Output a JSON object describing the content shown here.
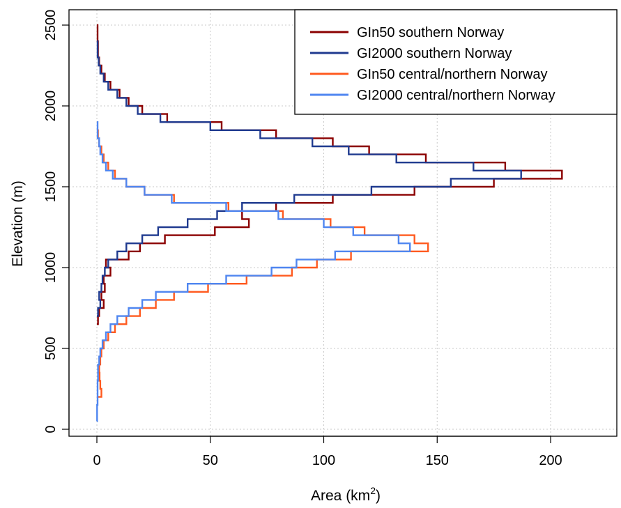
{
  "chart_data": {
    "type": "line",
    "xlabel": "Area (km",
    "xlabel_sup": "2",
    "xlabel_close": ")",
    "ylabel": "Elevation (m)",
    "xlim": [
      0,
      225
    ],
    "ylim": [
      0,
      2550
    ],
    "xticks": [
      0,
      50,
      100,
      150,
      200
    ],
    "yticks": [
      0,
      500,
      1000,
      1500,
      2000,
      2500
    ],
    "grid": true,
    "legend_position": "top-right",
    "series": [
      {
        "name": "GIn50 southern Norway",
        "color": "#8B0000",
        "steps": [
          {
            "y0": 650,
            "y1": 700,
            "x": 0.5
          },
          {
            "y0": 700,
            "y1": 750,
            "x": 1
          },
          {
            "y0": 750,
            "y1": 800,
            "x": 3
          },
          {
            "y0": 800,
            "y1": 850,
            "x": 2
          },
          {
            "y0": 850,
            "y1": 900,
            "x": 3.5
          },
          {
            "y0": 900,
            "y1": 950,
            "x": 3
          },
          {
            "y0": 950,
            "y1": 1000,
            "x": 6
          },
          {
            "y0": 1000,
            "y1": 1050,
            "x": 4
          },
          {
            "y0": 1050,
            "y1": 1100,
            "x": 14
          },
          {
            "y0": 1100,
            "y1": 1150,
            "x": 19
          },
          {
            "y0": 1150,
            "y1": 1200,
            "x": 30
          },
          {
            "y0": 1200,
            "y1": 1250,
            "x": 52
          },
          {
            "y0": 1250,
            "y1": 1300,
            "x": 67
          },
          {
            "y0": 1300,
            "y1": 1350,
            "x": 64
          },
          {
            "y0": 1350,
            "y1": 1400,
            "x": 79
          },
          {
            "y0": 1400,
            "y1": 1450,
            "x": 104
          },
          {
            "y0": 1450,
            "y1": 1500,
            "x": 140
          },
          {
            "y0": 1500,
            "y1": 1550,
            "x": 175
          },
          {
            "y0": 1550,
            "y1": 1600,
            "x": 205
          },
          {
            "y0": 1600,
            "y1": 1650,
            "x": 180
          },
          {
            "y0": 1650,
            "y1": 1700,
            "x": 145
          },
          {
            "y0": 1700,
            "y1": 1750,
            "x": 120
          },
          {
            "y0": 1750,
            "y1": 1800,
            "x": 104
          },
          {
            "y0": 1800,
            "y1": 1850,
            "x": 79
          },
          {
            "y0": 1850,
            "y1": 1900,
            "x": 55
          },
          {
            "y0": 1900,
            "y1": 1950,
            "x": 31
          },
          {
            "y0": 1950,
            "y1": 2000,
            "x": 20
          },
          {
            "y0": 2000,
            "y1": 2050,
            "x": 14
          },
          {
            "y0": 2050,
            "y1": 2100,
            "x": 10
          },
          {
            "y0": 2100,
            "y1": 2150,
            "x": 6
          },
          {
            "y0": 2150,
            "y1": 2200,
            "x": 3.5
          },
          {
            "y0": 2200,
            "y1": 2250,
            "x": 2
          },
          {
            "y0": 2250,
            "y1": 2300,
            "x": 1
          },
          {
            "y0": 2300,
            "y1": 2400,
            "x": 0.5
          },
          {
            "y0": 2400,
            "y1": 2500,
            "x": 0.3
          }
        ]
      },
      {
        "name": "GI2000 southern Norway",
        "color": "#1F3A8F",
        "steps": [
          {
            "y0": 700,
            "y1": 750,
            "x": 0.5
          },
          {
            "y0": 750,
            "y1": 800,
            "x": 1.5
          },
          {
            "y0": 800,
            "y1": 850,
            "x": 1
          },
          {
            "y0": 850,
            "y1": 900,
            "x": 2
          },
          {
            "y0": 900,
            "y1": 950,
            "x": 2.5
          },
          {
            "y0": 950,
            "y1": 1000,
            "x": 3.5
          },
          {
            "y0": 1000,
            "y1": 1050,
            "x": 5
          },
          {
            "y0": 1050,
            "y1": 1100,
            "x": 9
          },
          {
            "y0": 1100,
            "y1": 1150,
            "x": 13
          },
          {
            "y0": 1150,
            "y1": 1200,
            "x": 20
          },
          {
            "y0": 1200,
            "y1": 1250,
            "x": 27
          },
          {
            "y0": 1250,
            "y1": 1300,
            "x": 40
          },
          {
            "y0": 1300,
            "y1": 1350,
            "x": 53
          },
          {
            "y0": 1350,
            "y1": 1400,
            "x": 64
          },
          {
            "y0": 1400,
            "y1": 1450,
            "x": 87
          },
          {
            "y0": 1450,
            "y1": 1500,
            "x": 121
          },
          {
            "y0": 1500,
            "y1": 1550,
            "x": 156
          },
          {
            "y0": 1550,
            "y1": 1600,
            "x": 187
          },
          {
            "y0": 1600,
            "y1": 1650,
            "x": 166
          },
          {
            "y0": 1650,
            "y1": 1700,
            "x": 132
          },
          {
            "y0": 1700,
            "y1": 1750,
            "x": 111
          },
          {
            "y0": 1750,
            "y1": 1800,
            "x": 95
          },
          {
            "y0": 1800,
            "y1": 1850,
            "x": 72
          },
          {
            "y0": 1850,
            "y1": 1900,
            "x": 50
          },
          {
            "y0": 1900,
            "y1": 1950,
            "x": 28
          },
          {
            "y0": 1950,
            "y1": 2000,
            "x": 18
          },
          {
            "y0": 2000,
            "y1": 2050,
            "x": 13
          },
          {
            "y0": 2050,
            "y1": 2100,
            "x": 9
          },
          {
            "y0": 2100,
            "y1": 2150,
            "x": 5
          },
          {
            "y0": 2150,
            "y1": 2200,
            "x": 3
          },
          {
            "y0": 2200,
            "y1": 2250,
            "x": 1.5
          },
          {
            "y0": 2250,
            "y1": 2300,
            "x": 0.8
          },
          {
            "y0": 2300,
            "y1": 2400,
            "x": 0.3
          }
        ]
      },
      {
        "name": "GIn50 central/northern Norway",
        "color": "#FF5A1F",
        "steps": [
          {
            "y0": 200,
            "y1": 250,
            "x": 2
          },
          {
            "y0": 250,
            "y1": 300,
            "x": 1.5
          },
          {
            "y0": 300,
            "y1": 350,
            "x": 1.2
          },
          {
            "y0": 350,
            "y1": 400,
            "x": 1
          },
          {
            "y0": 400,
            "y1": 450,
            "x": 1.5
          },
          {
            "y0": 450,
            "y1": 500,
            "x": 2
          },
          {
            "y0": 500,
            "y1": 550,
            "x": 3
          },
          {
            "y0": 550,
            "y1": 600,
            "x": 5
          },
          {
            "y0": 600,
            "y1": 650,
            "x": 8
          },
          {
            "y0": 650,
            "y1": 700,
            "x": 13
          },
          {
            "y0": 700,
            "y1": 750,
            "x": 19
          },
          {
            "y0": 750,
            "y1": 800,
            "x": 26
          },
          {
            "y0": 800,
            "y1": 850,
            "x": 34
          },
          {
            "y0": 850,
            "y1": 900,
            "x": 49
          },
          {
            "y0": 900,
            "y1": 950,
            "x": 66
          },
          {
            "y0": 950,
            "y1": 1000,
            "x": 86
          },
          {
            "y0": 1000,
            "y1": 1050,
            "x": 97
          },
          {
            "y0": 1050,
            "y1": 1100,
            "x": 112
          },
          {
            "y0": 1100,
            "y1": 1150,
            "x": 146
          },
          {
            "y0": 1150,
            "y1": 1200,
            "x": 140
          },
          {
            "y0": 1200,
            "y1": 1250,
            "x": 118
          },
          {
            "y0": 1250,
            "y1": 1300,
            "x": 103
          },
          {
            "y0": 1300,
            "y1": 1350,
            "x": 82
          },
          {
            "y0": 1350,
            "y1": 1400,
            "x": 58
          },
          {
            "y0": 1400,
            "y1": 1450,
            "x": 34
          },
          {
            "y0": 1450,
            "y1": 1500,
            "x": 21
          },
          {
            "y0": 1500,
            "y1": 1550,
            "x": 13
          },
          {
            "y0": 1550,
            "y1": 1600,
            "x": 8
          },
          {
            "y0": 1600,
            "y1": 1650,
            "x": 5
          },
          {
            "y0": 1650,
            "y1": 1700,
            "x": 3
          },
          {
            "y0": 1700,
            "y1": 1750,
            "x": 2
          },
          {
            "y0": 1750,
            "y1": 1800,
            "x": 1
          },
          {
            "y0": 1800,
            "y1": 1850,
            "x": 0.5
          }
        ]
      },
      {
        "name": "GI2000 central/northern Norway",
        "color": "#4F86F0",
        "steps": [
          {
            "y0": 50,
            "y1": 150,
            "x": 0.1
          },
          {
            "y0": 150,
            "y1": 300,
            "x": 0.3
          },
          {
            "y0": 300,
            "y1": 400,
            "x": 0.5
          },
          {
            "y0": 400,
            "y1": 450,
            "x": 1
          },
          {
            "y0": 450,
            "y1": 500,
            "x": 1.5
          },
          {
            "y0": 500,
            "y1": 550,
            "x": 2.5
          },
          {
            "y0": 550,
            "y1": 600,
            "x": 4
          },
          {
            "y0": 600,
            "y1": 650,
            "x": 6
          },
          {
            "y0": 650,
            "y1": 700,
            "x": 9
          },
          {
            "y0": 700,
            "y1": 750,
            "x": 14
          },
          {
            "y0": 750,
            "y1": 800,
            "x": 20
          },
          {
            "y0": 800,
            "y1": 850,
            "x": 26
          },
          {
            "y0": 850,
            "y1": 900,
            "x": 40
          },
          {
            "y0": 900,
            "y1": 950,
            "x": 57
          },
          {
            "y0": 950,
            "y1": 1000,
            "x": 77
          },
          {
            "y0": 1000,
            "y1": 1050,
            "x": 88
          },
          {
            "y0": 1050,
            "y1": 1100,
            "x": 105
          },
          {
            "y0": 1100,
            "y1": 1150,
            "x": 138
          },
          {
            "y0": 1150,
            "y1": 1200,
            "x": 133
          },
          {
            "y0": 1200,
            "y1": 1250,
            "x": 113
          },
          {
            "y0": 1250,
            "y1": 1300,
            "x": 100
          },
          {
            "y0": 1300,
            "y1": 1350,
            "x": 80
          },
          {
            "y0": 1350,
            "y1": 1400,
            "x": 57
          },
          {
            "y0": 1400,
            "y1": 1450,
            "x": 33
          },
          {
            "y0": 1450,
            "y1": 1500,
            "x": 21
          },
          {
            "y0": 1500,
            "y1": 1550,
            "x": 13
          },
          {
            "y0": 1550,
            "y1": 1600,
            "x": 7
          },
          {
            "y0": 1600,
            "y1": 1650,
            "x": 4
          },
          {
            "y0": 1650,
            "y1": 1700,
            "x": 2.5
          },
          {
            "y0": 1700,
            "y1": 1750,
            "x": 1.5
          },
          {
            "y0": 1750,
            "y1": 1800,
            "x": 1
          },
          {
            "y0": 1800,
            "y1": 1900,
            "x": 0.3
          }
        ]
      }
    ]
  }
}
